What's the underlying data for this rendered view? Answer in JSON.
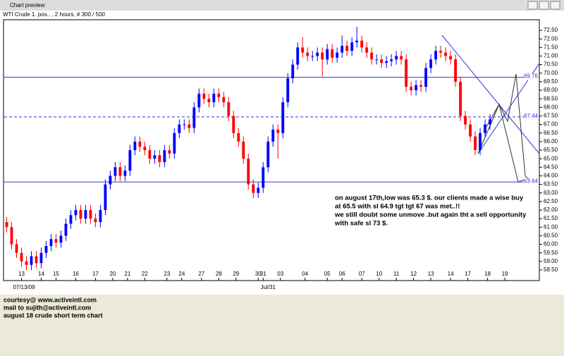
{
  "window_title": "Chart preview",
  "footer": [
    "courtesy@ www.activeintl.com",
    "mail to sujith@activeintl.com",
    "august 18 crude short term chart"
  ],
  "chart_data": {
    "type": "candlestick",
    "title": "WTI Crude 1. pos.. , 2 hours, # 300 / 500",
    "up_color": "#0000ff",
    "down_color": "#ff0000",
    "open": [
      61.3,
      61.0,
      60.0,
      59.5,
      59.0,
      58.8,
      59.3,
      58.9,
      59.5,
      59.9,
      60.3,
      60.1,
      60.5,
      61.2,
      61.7,
      62.0,
      61.5,
      62.0,
      61.5,
      61.3,
      62.0,
      63.5,
      64.0,
      64.5,
      64.0,
      64.3,
      65.5,
      66.0,
      65.7,
      65.5,
      65.0,
      65.2,
      64.8,
      65.5,
      65.3,
      66.5,
      67.0,
      67.0,
      66.8,
      68.0,
      68.8,
      68.5,
      68.3,
      68.8,
      68.6,
      68.3,
      67.5,
      66.5,
      66.0,
      65.0,
      63.5,
      63.0,
      63.3,
      64.5,
      66.0,
      66.7,
      66.5,
      68.3,
      69.7,
      70.5,
      71.5,
      71.2,
      71.0,
      71.0,
      71.2,
      70.8,
      71.4,
      70.9,
      71.2,
      71.6,
      71.3,
      71.8,
      71.9,
      71.5,
      71.2,
      70.8,
      70.8,
      70.6,
      70.7,
      70.8,
      71.0,
      70.8,
      69.2,
      69.0,
      69.3,
      69.2,
      70.3,
      70.8,
      71.3,
      71.2,
      71.0,
      70.8,
      69.5,
      67.5,
      67.0,
      66.3,
      65.5,
      66.5,
      67.0
    ],
    "high": [
      61.6,
      61.3,
      60.3,
      59.8,
      59.3,
      59.6,
      59.6,
      59.8,
      60.2,
      60.6,
      60.6,
      60.8,
      61.5,
      62.0,
      62.3,
      62.3,
      62.3,
      62.3,
      61.8,
      62.3,
      63.8,
      64.3,
      64.8,
      64.8,
      64.6,
      65.8,
      66.3,
      66.3,
      66.0,
      65.8,
      65.5,
      65.5,
      65.8,
      65.8,
      66.8,
      67.3,
      67.3,
      67.3,
      68.3,
      69.1,
      69.1,
      68.8,
      69.1,
      69.1,
      68.9,
      68.6,
      67.8,
      66.8,
      66.3,
      65.3,
      63.8,
      63.6,
      64.8,
      66.3,
      67.0,
      67.0,
      68.6,
      70.0,
      70.8,
      71.8,
      72.1,
      71.5,
      71.3,
      71.5,
      71.5,
      71.7,
      71.7,
      71.5,
      72.2,
      71.9,
      72.1,
      72.7,
      72.2,
      71.8,
      71.5,
      71.1,
      71.1,
      71.0,
      71.1,
      71.3,
      71.3,
      71.1,
      69.5,
      69.6,
      69.6,
      70.6,
      71.1,
      71.6,
      71.6,
      71.5,
      71.3,
      71.1,
      69.8,
      67.8,
      67.3,
      66.6,
      66.8,
      67.3,
      67.6
    ],
    "low": [
      60.7,
      59.7,
      59.2,
      58.7,
      58.5,
      58.5,
      58.6,
      58.6,
      59.2,
      59.6,
      59.8,
      59.8,
      60.2,
      60.9,
      61.4,
      61.2,
      61.2,
      61.2,
      61.0,
      61.0,
      61.7,
      63.2,
      63.7,
      63.7,
      63.7,
      64.0,
      65.2,
      65.4,
      65.2,
      64.7,
      64.7,
      64.5,
      64.5,
      65.0,
      65.0,
      66.2,
      66.7,
      66.5,
      66.5,
      67.7,
      68.2,
      68.0,
      68.0,
      68.3,
      68.0,
      67.2,
      66.2,
      65.7,
      64.7,
      63.2,
      62.7,
      62.7,
      63.0,
      64.2,
      65.7,
      65.0,
      66.2,
      68.0,
      69.4,
      70.2,
      70.9,
      70.7,
      70.7,
      70.7,
      69.8,
      70.5,
      70.6,
      70.6,
      70.9,
      71.0,
      71.0,
      71.5,
      71.2,
      70.9,
      70.5,
      70.5,
      70.3,
      70.3,
      70.4,
      70.5,
      70.5,
      68.9,
      68.7,
      68.7,
      68.9,
      68.9,
      70.0,
      70.5,
      70.9,
      70.7,
      70.5,
      69.2,
      67.2,
      66.7,
      66.0,
      65.2,
      65.2,
      66.2,
      66.7
    ],
    "close": [
      61.0,
      60.0,
      59.5,
      59.0,
      58.8,
      59.3,
      58.9,
      59.5,
      59.9,
      60.3,
      60.1,
      60.5,
      61.2,
      61.7,
      62.0,
      61.5,
      62.0,
      61.5,
      61.3,
      62.0,
      63.5,
      64.0,
      64.5,
      64.0,
      64.3,
      65.5,
      66.0,
      65.7,
      65.5,
      65.0,
      65.2,
      64.8,
      65.5,
      65.3,
      66.5,
      67.0,
      67.0,
      66.8,
      68.0,
      68.8,
      68.5,
      68.3,
      68.8,
      68.6,
      68.3,
      67.5,
      66.5,
      66.0,
      65.0,
      63.5,
      63.0,
      63.3,
      64.5,
      66.0,
      66.7,
      66.5,
      68.3,
      69.7,
      70.5,
      71.5,
      71.2,
      71.0,
      71.0,
      71.2,
      70.8,
      71.4,
      70.9,
      71.2,
      71.6,
      71.3,
      71.8,
      71.9,
      71.5,
      71.2,
      70.8,
      70.8,
      70.6,
      70.7,
      70.8,
      71.0,
      70.8,
      69.2,
      69.0,
      69.3,
      69.2,
      70.3,
      70.8,
      71.3,
      71.2,
      71.0,
      70.8,
      69.5,
      67.5,
      67.0,
      66.3,
      65.5,
      66.5,
      67.0,
      67.3
    ],
    "xlim": [
      -0.5,
      108
    ],
    "xticks": [
      {
        "value": 3,
        "label": "13"
      },
      {
        "value": 7,
        "label": "14"
      },
      {
        "value": 10,
        "label": "15"
      },
      {
        "value": 14,
        "label": "16"
      },
      {
        "value": 18,
        "label": "17"
      },
      {
        "value": 21.5,
        "label": "20"
      },
      {
        "value": 24.5,
        "label": "21"
      },
      {
        "value": 28,
        "label": "22"
      },
      {
        "value": 32.5,
        "label": "23"
      },
      {
        "value": 35.5,
        "label": "24"
      },
      {
        "value": 39.5,
        "label": "27"
      },
      {
        "value": 43,
        "label": "28"
      },
      {
        "value": 46.5,
        "label": "29"
      },
      {
        "value": 51,
        "label": "30"
      },
      {
        "value": 52,
        "label": "31"
      },
      {
        "value": 55.5,
        "label": "03"
      },
      {
        "value": 60.5,
        "label": "04"
      },
      {
        "value": 65,
        "label": "05"
      },
      {
        "value": 68,
        "label": "06"
      },
      {
        "value": 72,
        "label": "07"
      },
      {
        "value": 75.5,
        "label": "10"
      },
      {
        "value": 79,
        "label": "11"
      },
      {
        "value": 82.5,
        "label": "12"
      },
      {
        "value": 86,
        "label": "13"
      },
      {
        "value": 90,
        "label": "14"
      },
      {
        "value": 93.5,
        "label": "17"
      },
      {
        "value": 97.5,
        "label": "18"
      },
      {
        "value": 101,
        "label": "19"
      }
    ],
    "xticks_major": [
      {
        "value": 3.5,
        "label": "07/13/09"
      },
      {
        "value": 53,
        "label": "Jul/31"
      }
    ],
    "ylim": [
      57.88,
      73.45
    ],
    "yticks": [
      {
        "value": 58.5,
        "label": "58.50"
      },
      {
        "value": 59,
        "label": "59.00"
      },
      {
        "value": 59.5,
        "label": "59.50"
      },
      {
        "value": 60,
        "label": "60.00"
      },
      {
        "value": 60.5,
        "label": "60.50"
      },
      {
        "value": 61,
        "label": "61.00"
      },
      {
        "value": 61.5,
        "label": "61.50"
      },
      {
        "value": 62,
        "label": "62.00"
      },
      {
        "value": 62.5,
        "label": "62.50"
      },
      {
        "value": 63,
        "label": "63.00"
      },
      {
        "value": 63.5,
        "label": "63.50"
      },
      {
        "value": 64,
        "label": "64.00"
      },
      {
        "value": 64.5,
        "label": "64.50"
      },
      {
        "value": 65,
        "label": "65.00"
      },
      {
        "value": 65.5,
        "label": "65.50"
      },
      {
        "value": 66,
        "label": "66.00"
      },
      {
        "value": 66.5,
        "label": "66.50"
      },
      {
        "value": 67,
        "label": "67.00"
      },
      {
        "value": 67.5,
        "label": "67.50"
      },
      {
        "value": 68,
        "label": "68.00"
      },
      {
        "value": 68.5,
        "label": "68.50"
      },
      {
        "value": 69,
        "label": "69.00"
      },
      {
        "value": 69.5,
        "label": "69.50"
      },
      {
        "value": 70,
        "label": "70.00"
      },
      {
        "value": 70.5,
        "label": "70.50"
      },
      {
        "value": 71,
        "label": "71.00"
      },
      {
        "value": 71.5,
        "label": "71.50"
      },
      {
        "value": 72,
        "label": "72.00"
      },
      {
        "value": 72.5,
        "label": "72.50"
      }
    ],
    "levels": [
      {
        "value": 69.76,
        "style": "solid",
        "color": "#3030e0"
      },
      {
        "value": 67.44,
        "style": "dashed",
        "color": "#3030e0"
      },
      {
        "value": 63.64,
        "style": "solid",
        "color": "#3030e0"
      }
    ],
    "annotation": [
      "on august 17th,low was 65.3 $. our clients made a wise buy",
      "at 65.5 with sl 64.9 tgt tgt 67 was met..!!",
      "we still doubt some unmove .but again tht a sell opportunity",
      "with safe sl 73 $."
    ]
  }
}
